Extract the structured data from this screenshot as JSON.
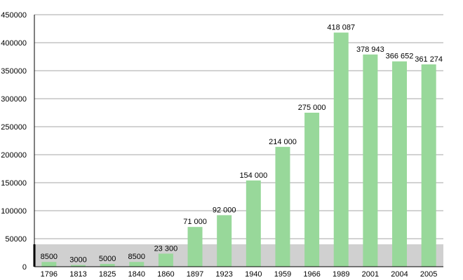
{
  "chart_data": {
    "type": "bar",
    "title": "",
    "xlabel": "",
    "ylabel": "",
    "ylim": [
      0,
      450000
    ],
    "yticks": [
      0,
      50000,
      100000,
      150000,
      200000,
      250000,
      300000,
      350000,
      400000,
      450000
    ],
    "ytick_labels": [
      "0",
      "50000",
      "100000",
      "150000",
      "200000",
      "250000",
      "300000",
      "350000",
      "400000",
      "450000"
    ],
    "grid": true,
    "legend": "none",
    "categories": [
      "1796",
      "1813",
      "1825",
      "1840",
      "1860",
      "1897",
      "1923",
      "1940",
      "1959",
      "1966",
      "1989",
      "2001",
      "2004",
      "2005"
    ],
    "values": [
      8500,
      3000,
      5000,
      8500,
      23300,
      71000,
      92000,
      154000,
      214000,
      275000,
      418087,
      378943,
      366652,
      361274
    ],
    "data_labels": [
      "8500",
      "3000",
      "5000",
      "8500",
      "23 300",
      "71 000",
      "92 000",
      "154 000",
      "214 000",
      "275 000",
      "418 087",
      "378 943",
      "366 652",
      "361 274"
    ],
    "highlight_band": [
      0,
      40000
    ],
    "colors": {
      "bar": "#98d89a",
      "band": "#d0d0d0",
      "grid": "#888888",
      "axis": "#000000"
    }
  }
}
